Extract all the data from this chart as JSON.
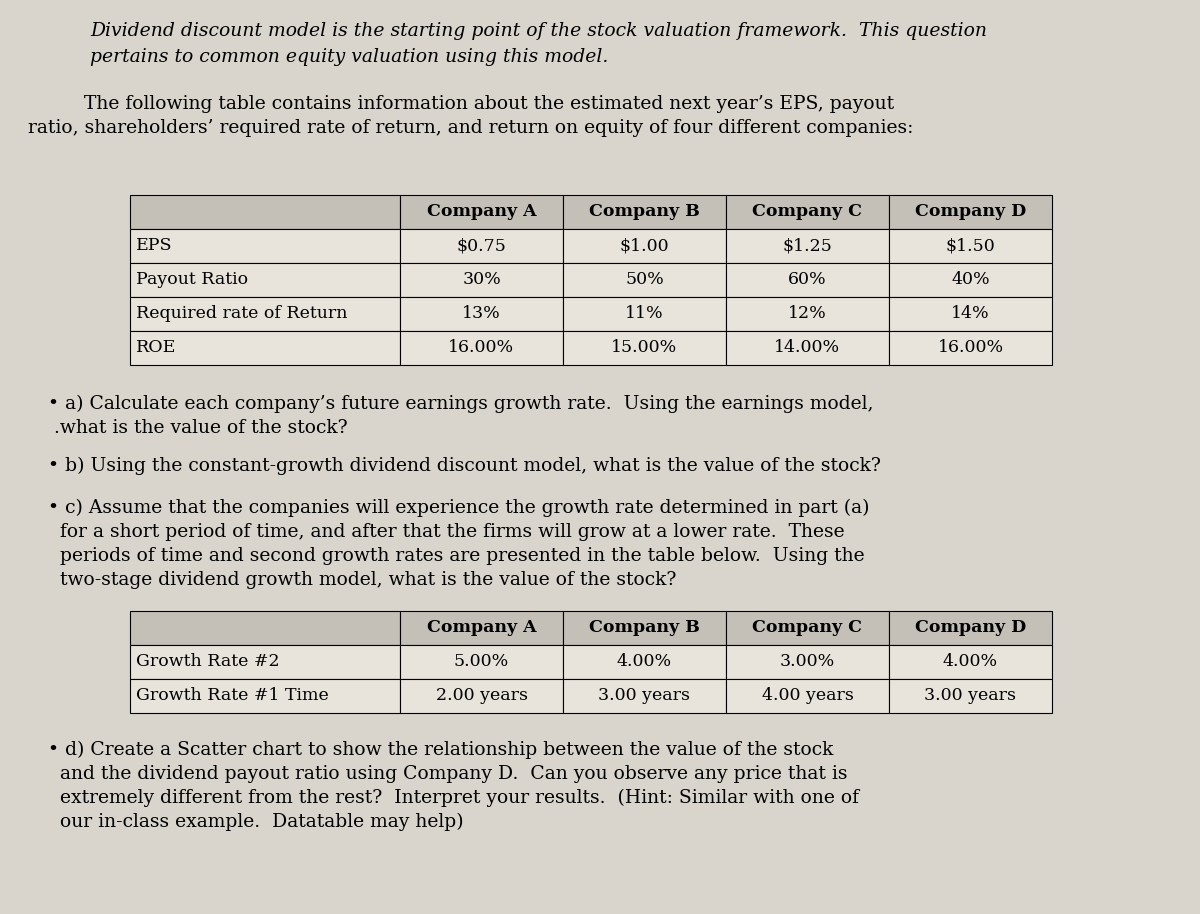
{
  "bg_color": "#d9d5cd",
  "table_header_color": "#c4c0b8",
  "table_cell_color": "#e8e4dc",
  "intro_italic": "Dividend discount model is the starting point of the stock valuation framework.  This question\npertains to common equity valuation using this model.",
  "para1_line1": "    The following table contains information about the estimated next year’s EPS, payout",
  "para1_line2": "ratio, shareholders’ required rate of return, and return on equity of four different companies:",
  "table1_headers": [
    "",
    "Company A",
    "Company B",
    "Company C",
    "Company D"
  ],
  "table1_rows": [
    [
      "EPS",
      "$0.75",
      "$1.00",
      "$1.25",
      "$1.50"
    ],
    [
      "Payout Ratio",
      "30%",
      "50%",
      "60%",
      "40%"
    ],
    [
      "Required rate of Return",
      "13%",
      "11%",
      "12%",
      "14%"
    ],
    [
      "ROE",
      "16.00%",
      "15.00%",
      "14.00%",
      "16.00%"
    ]
  ],
  "bullet_a_line1": "• a) Calculate each company’s future earnings growth rate.  Using the earnings model,",
  "bullet_a_line2": " .what is the value of the stock?",
  "bullet_b": "• b) Using the constant-growth dividend discount model, what is the value of the stock?",
  "bullet_c_line1": "• c) Assume that the companies will experience the growth rate determined in part (a)",
  "bullet_c_line2": "  for a short period of time, and after that the firms will grow at a lower rate.  These",
  "bullet_c_line3": "  periods of time and second growth rates are presented in the table below.  Using the",
  "bullet_c_line4": "  two-stage dividend growth model, what is the value of the stock?",
  "table2_headers": [
    "",
    "Company A",
    "Company B",
    "Company C",
    "Company D"
  ],
  "table2_rows": [
    [
      "Growth Rate #2",
      "5.00%",
      "4.00%",
      "3.00%",
      "4.00%"
    ],
    [
      "Growth Rate #1 Time",
      "2.00 years",
      "3.00 years",
      "4.00 years",
      "3.00 years"
    ]
  ],
  "bullet_d_line1": "• d) Create a Scatter chart to show the relationship between the value of the stock",
  "bullet_d_line2": "  and the dividend payout ratio using Company D.  Can you observe any price that is",
  "bullet_d_line3": "  extremely different from the rest?  Interpret your results.  (Hint: Similar with one of",
  "bullet_d_line4": "  our in-class example.  Datatable may help)"
}
